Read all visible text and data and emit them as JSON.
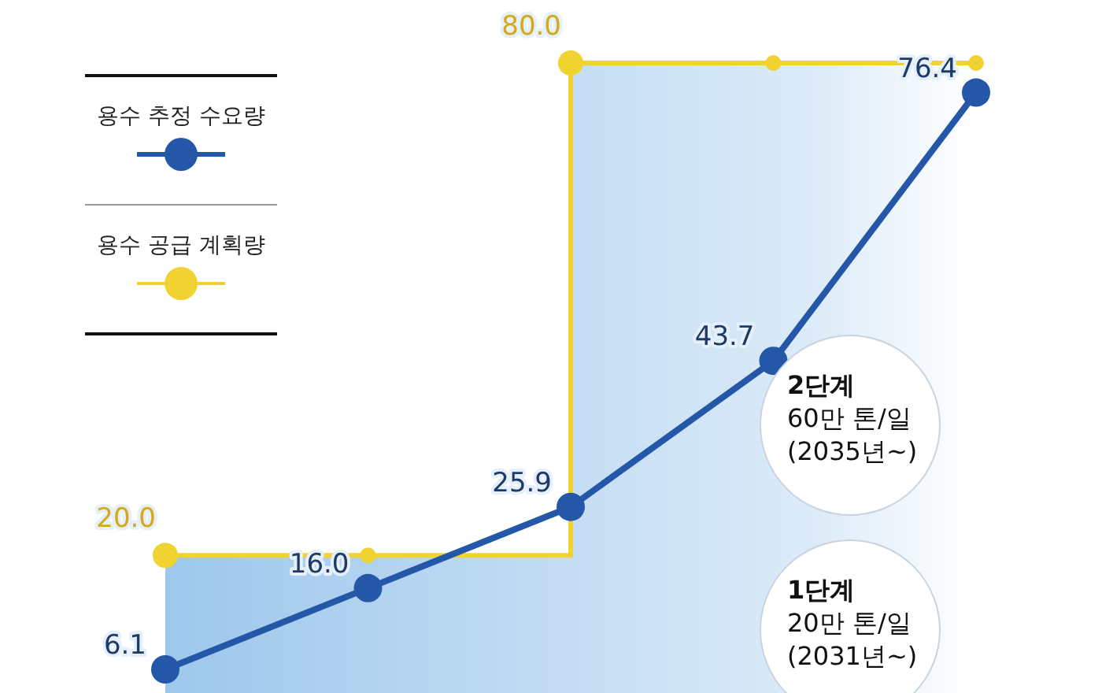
{
  "chart_data": {
    "type": "line",
    "categories": [
      null,
      null,
      null,
      null,
      null
    ],
    "series": [
      {
        "name": "용수 추정 수요량",
        "color": "#2457a8",
        "values": [
          6.1,
          16.0,
          25.9,
          43.7,
          76.4
        ],
        "value_labels": [
          "6.1",
          "16.0",
          "25.9",
          "43.7",
          "76.4"
        ]
      },
      {
        "name": "용수 공급 계획량",
        "type": "step",
        "color": "#f0d230",
        "values": [
          20.0,
          20.0,
          80.0,
          80.0,
          80.0
        ],
        "value_labels": [
          "20.0",
          null,
          "80.0",
          null,
          null
        ]
      }
    ],
    "tick_labels": false,
    "marker": "circle",
    "legend": "left",
    "grid": false,
    "annotations": [
      "2단계\n60만 톤/일\n(2035년~)",
      "1단계\n20만 톤/일\n(2031년~)"
    ]
  }
}
